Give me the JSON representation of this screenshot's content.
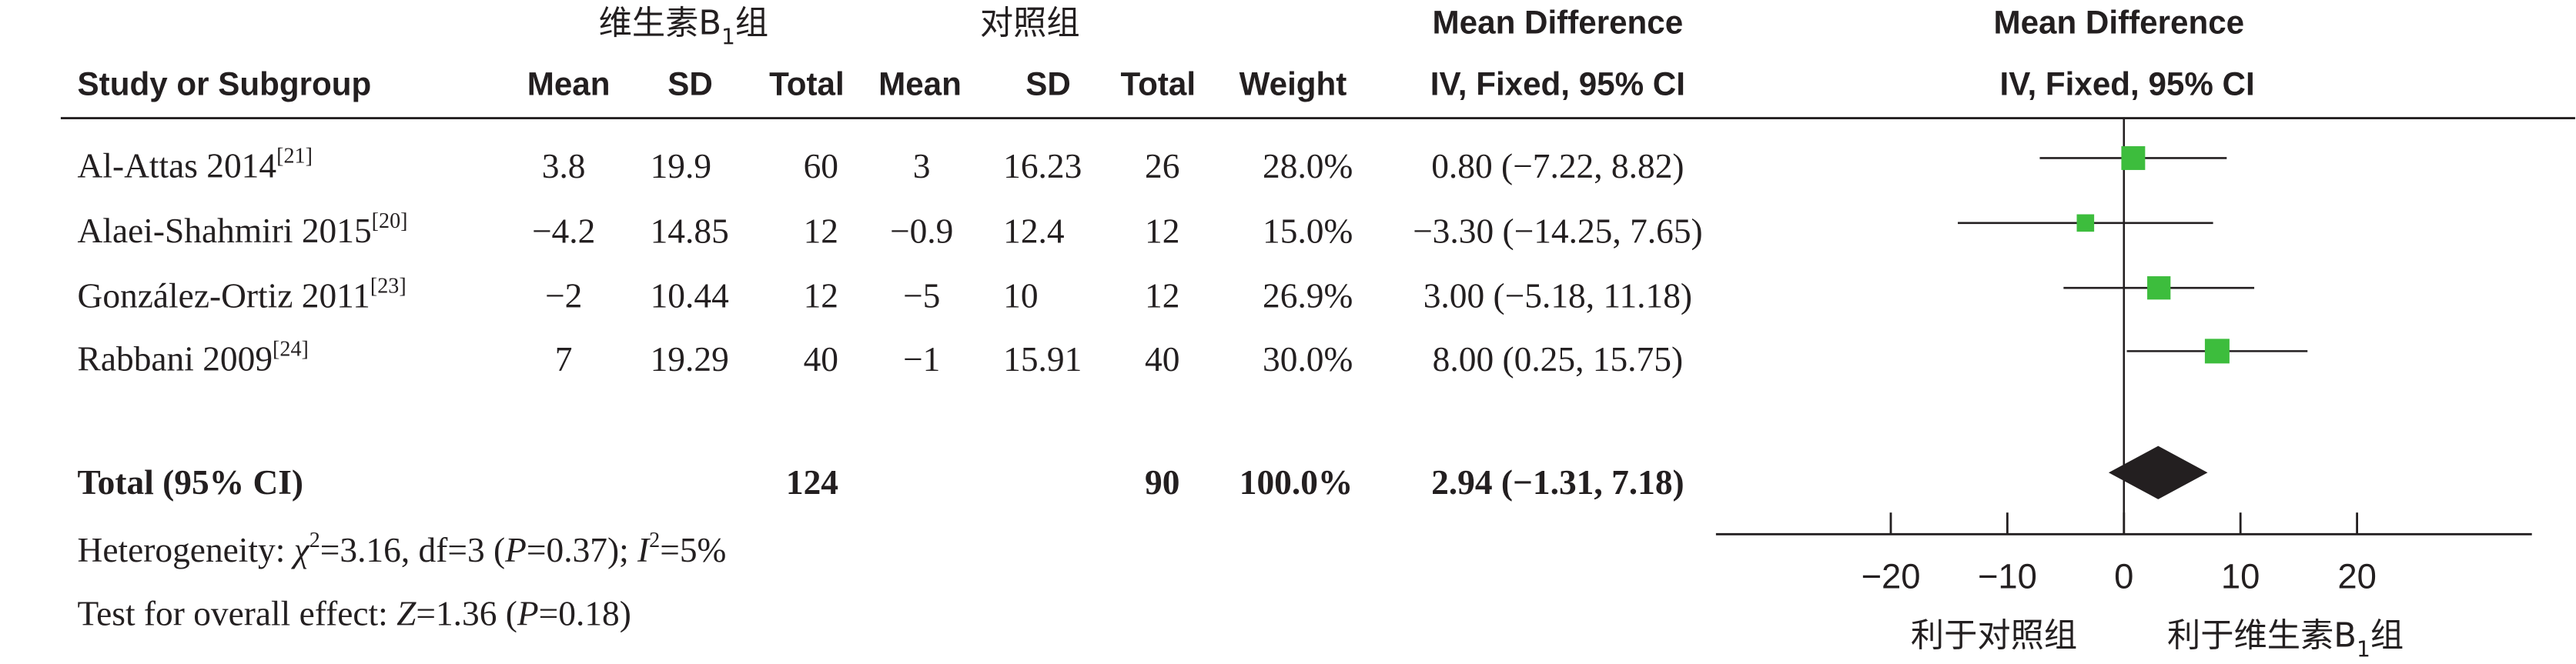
{
  "chart_data": {
    "type": "forest",
    "group_headers": {
      "experimental": [
        {
          "text": "维生素B"
        },
        {
          "text": "1",
          "style": "sub"
        },
        {
          "text": "组"
        }
      ],
      "control": [
        {
          "text": "对照组"
        }
      ],
      "effect": "Mean Difference",
      "plot": "Mean Difference"
    },
    "columns": [
      "Study or Subgroup",
      "Mean",
      "SD",
      "Total",
      "Mean",
      "SD",
      "Total",
      "Weight",
      "IV, Fixed, 95% CI",
      "IV, Fixed, 95% CI"
    ],
    "studies": [
      {
        "name": [
          {
            "text": "Al-Attas 2014"
          },
          {
            "text": "[21]",
            "style": "sup"
          }
        ],
        "mean1": "3.8",
        "sd1": "19.9",
        "n1": 60,
        "mean2": "3",
        "sd2": "16.23",
        "n2": 26,
        "weight": 28.0,
        "weight_label": "28.0%",
        "effect": {
          "md": 0.8,
          "low": -7.22,
          "high": 8.82,
          "label": "0.80 (−7.22, 8.82)"
        }
      },
      {
        "name": [
          {
            "text": "Alaei-Shahmiri 2015"
          },
          {
            "text": "[20]",
            "style": "sup"
          }
        ],
        "mean1": "−4.2",
        "sd1": "14.85",
        "n1": 12,
        "mean2": "−0.9",
        "sd2": "12.4",
        "n2": 12,
        "weight": 15.0,
        "weight_label": "15.0%",
        "effect": {
          "md": -3.3,
          "low": -14.25,
          "high": 7.65,
          "label": "−3.30 (−14.25, 7.65)"
        }
      },
      {
        "name": [
          {
            "text": "González-Ortiz 2011"
          },
          {
            "text": "[23]",
            "style": "sup"
          }
        ],
        "mean1": "−2",
        "sd1": "10.44",
        "n1": 12,
        "mean2": "−5",
        "sd2": "10",
        "n2": 12,
        "weight": 26.9,
        "weight_label": "26.9%",
        "effect": {
          "md": 3.0,
          "low": -5.18,
          "high": 11.18,
          "label": "3.00 (−5.18, 11.18)"
        }
      },
      {
        "name": [
          {
            "text": "Rabbani 2009"
          },
          {
            "text": "[24]",
            "style": "sup"
          }
        ],
        "mean1": "7",
        "sd1": "19.29",
        "n1": 40,
        "mean2": "−1",
        "sd2": "15.91",
        "n2": 40,
        "weight": 30.0,
        "weight_label": "30.0%",
        "effect": {
          "md": 8.0,
          "low": 0.25,
          "high": 15.75,
          "label": "8.00 (0.25, 15.75)"
        }
      }
    ],
    "total": {
      "name": "Total (95% CI)",
      "n1": 124,
      "n2": 90,
      "weight_label": "100.0%",
      "effect": {
        "md": 2.94,
        "low": -1.31,
        "high": 7.18,
        "label": "2.94 (−1.31, 7.18)"
      }
    },
    "heterogeneity": [
      {
        "text": "Heterogeneity: "
      },
      {
        "text": "χ",
        "style": "italic"
      },
      {
        "text": "2",
        "style": "sup"
      },
      {
        "text": "=3.16, df=3 ("
      },
      {
        "text": "P",
        "style": "italic"
      },
      {
        "text": "=0.37); "
      },
      {
        "text": "I",
        "style": "italic"
      },
      {
        "text": "2",
        "style": "sup"
      },
      {
        "text": "=5%"
      }
    ],
    "overall_effect": [
      {
        "text": "Test for overall effect: "
      },
      {
        "text": "Z",
        "style": "italic"
      },
      {
        "text": "=1.36 ("
      },
      {
        "text": "P",
        "style": "italic"
      },
      {
        "text": "=0.18)"
      }
    ],
    "xlim": [
      -35,
      35
    ],
    "xticks": [
      {
        "value": -20,
        "label": "−20"
      },
      {
        "value": -10,
        "label": "−10"
      },
      0,
      10,
      20
    ],
    "favours_left": [
      {
        "text": "利于对照组"
      }
    ],
    "favours_right": [
      {
        "text": "利于维生素B"
      },
      {
        "text": "1",
        "style": "sub"
      },
      {
        "text": "组"
      }
    ],
    "square_color": "#3dbd3d",
    "diamond_color": "#231f20"
  }
}
